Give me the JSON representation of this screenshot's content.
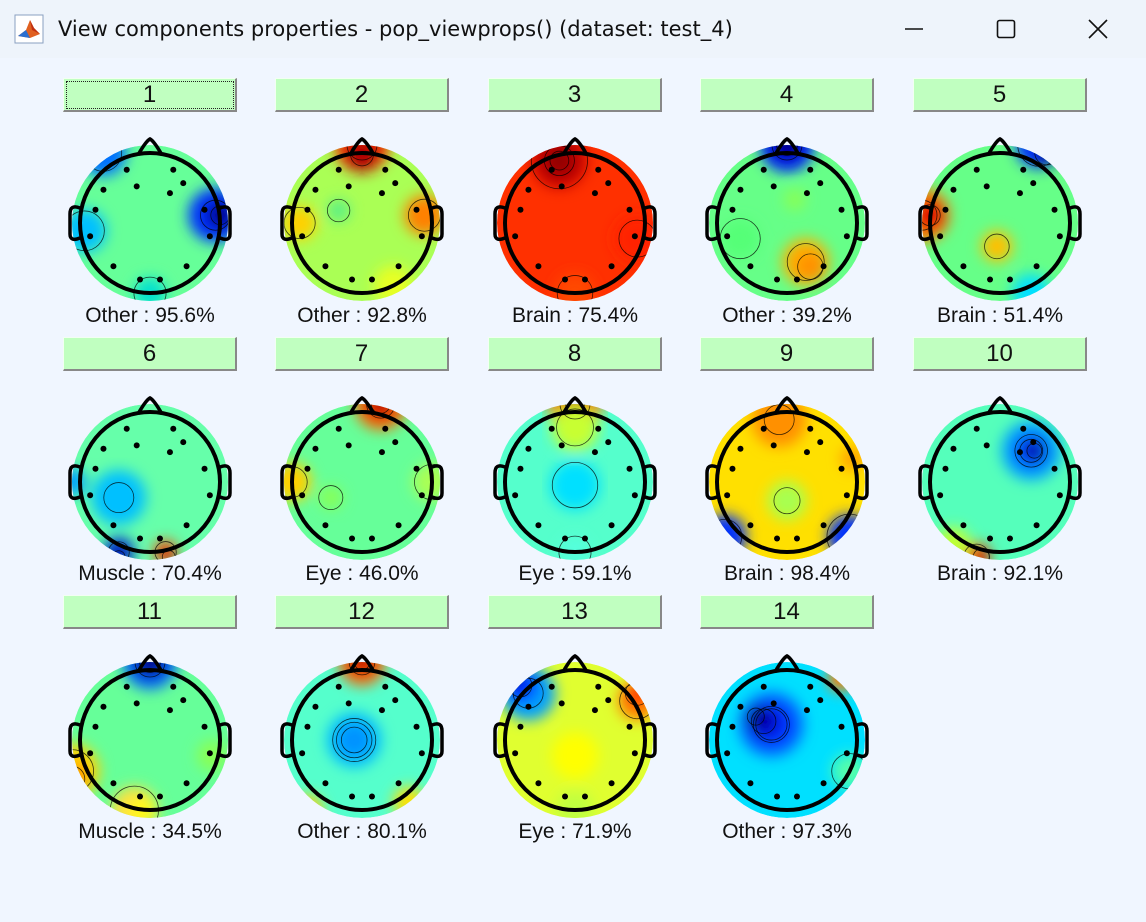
{
  "window": {
    "title": "View components properties - pop_viewprops() (dataset: test_4)",
    "app_icon": "matlab-icon",
    "controls": [
      "minimize-icon",
      "maximize-icon",
      "close-icon"
    ]
  },
  "components": [
    {
      "number": "1",
      "label": "Other : 95.6%",
      "palette": "blue"
    },
    {
      "number": "2",
      "label": "Other : 92.8%",
      "palette": "warm-green"
    },
    {
      "number": "3",
      "label": "Brain : 75.4%",
      "palette": "red"
    },
    {
      "number": "4",
      "label": "Other : 39.2%",
      "palette": "green-orange"
    },
    {
      "number": "5",
      "label": "Brain : 51.4%",
      "palette": "green-redleft"
    },
    {
      "number": "6",
      "label": "Muscle : 70.4%",
      "palette": "cyan"
    },
    {
      "number": "7",
      "label": "Eye : 46.0%",
      "palette": "green-redtop"
    },
    {
      "number": "8",
      "label": "Eye : 59.1%",
      "palette": "cyan-redtop"
    },
    {
      "number": "9",
      "label": "Brain : 98.4%",
      "palette": "orange-blue"
    },
    {
      "number": "10",
      "label": "Brain : 92.1%",
      "palette": "blue-spot"
    },
    {
      "number": "11",
      "label": "Muscle : 34.5%",
      "palette": "blue-top-yellow"
    },
    {
      "number": "12",
      "label": "Other : 80.1%",
      "palette": "blue-center"
    },
    {
      "number": "13",
      "label": "Eye : 71.9%",
      "palette": "yellow"
    },
    {
      "number": "14",
      "label": "Other : 97.3%",
      "palette": "darkblue"
    }
  ],
  "colors": {
    "button_bg": "#c0ffc0",
    "window_bg": "#f0f6ff"
  }
}
